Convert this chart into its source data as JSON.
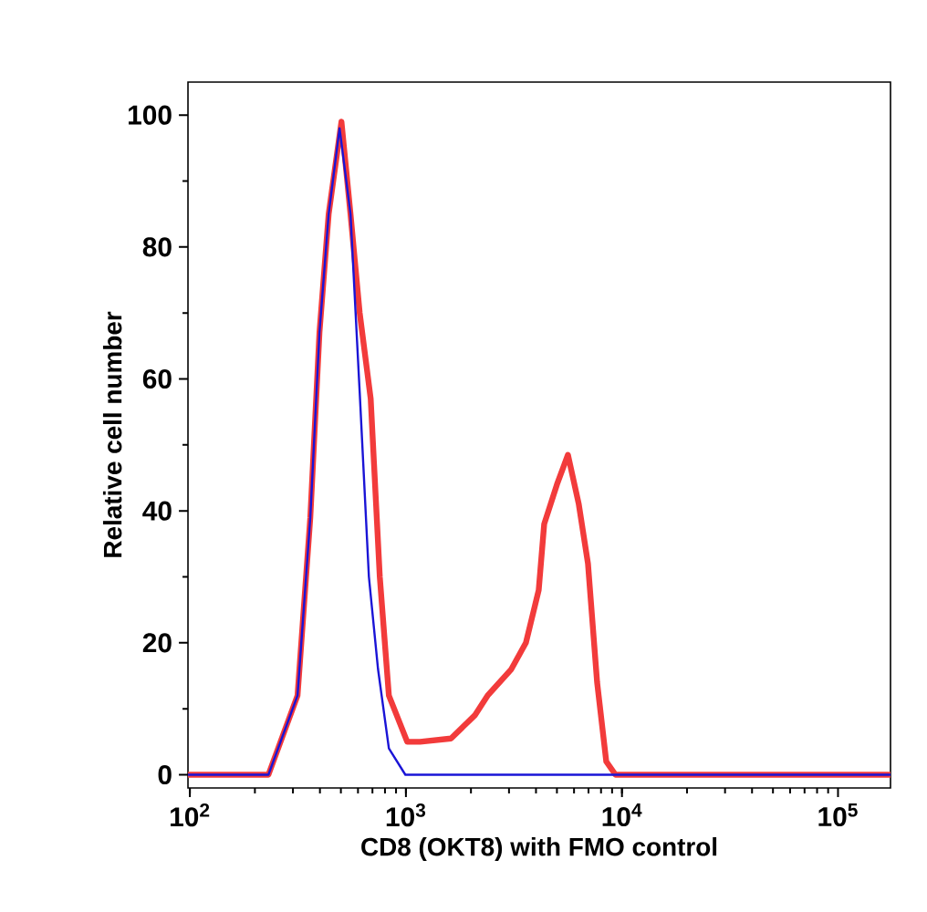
{
  "chart_data": {
    "type": "line",
    "xlabel": "CD8 (OKT8) with FMO control",
    "ylabel": "Relative cell number",
    "log": "x",
    "xlim": [
      98,
      175000
    ],
    "ylim": [
      -2,
      105
    ],
    "xticks": [
      {
        "value": 100,
        "label": "10$^{2}$"
      },
      {
        "value": 1000,
        "label": "10$^{3}$"
      },
      {
        "value": 10000,
        "label": "10$^{4}$"
      },
      {
        "value": 100000,
        "label": "10$^{5}$"
      }
    ],
    "yticks": [
      0,
      20,
      40,
      60,
      80,
      100
    ],
    "marker": "none",
    "line_style": "solid",
    "series": [
      {
        "color": "#f23b3b",
        "x": [
          98,
          150,
          231,
          315,
          361,
          398,
          439,
          503,
          554,
          611,
          687,
          757,
          834,
          1014,
          1162,
          1617,
          2083,
          2388,
          3075,
          3593,
          4118,
          4365,
          5002,
          5623,
          6313,
          6962,
          7674,
          8460,
          9333,
          175000
        ],
        "values": [
          0,
          0,
          0,
          12,
          39,
          67,
          85,
          99,
          85,
          70,
          57,
          30,
          12,
          5,
          5,
          5.5,
          9,
          12,
          16,
          20,
          28,
          38,
          44,
          48.5,
          41,
          32,
          14,
          2,
          0,
          0
        ]
      },
      {
        "color": "#1a14d6",
        "x": [
          98,
          150,
          231,
          315,
          361,
          398,
          439,
          493,
          554,
          611,
          674,
          743,
          834,
          994,
          175000
        ],
        "values": [
          0,
          0,
          0,
          12,
          39,
          67,
          85,
          98,
          85,
          58,
          30,
          16,
          4,
          0,
          0
        ]
      }
    ]
  }
}
